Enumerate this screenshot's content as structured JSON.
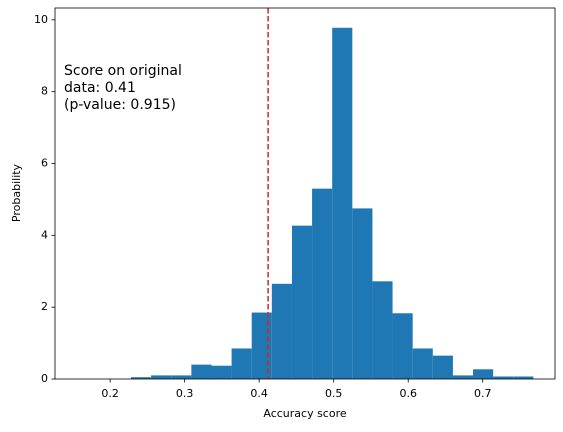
{
  "chart_data": {
    "type": "histogram",
    "xlabel": "Accuracy score",
    "ylabel": "Probability",
    "bins": [
      0.228,
      0.255,
      0.282,
      0.309,
      0.336,
      0.363,
      0.39,
      0.417,
      0.444,
      0.471,
      0.498,
      0.525,
      0.552,
      0.579,
      0.606,
      0.633,
      0.66,
      0.687,
      0.714,
      0.741,
      0.768
    ],
    "values": [
      0.05,
      0.1,
      0.1,
      0.4,
      0.37,
      0.85,
      1.85,
      2.65,
      4.27,
      5.3,
      9.78,
      4.75,
      2.72,
      1.83,
      0.85,
      0.65,
      0.1,
      0.27,
      0.07,
      0.07
    ],
    "color": "#1f77b4",
    "vline": {
      "value": 0.412,
      "color": "#d62728",
      "style": "dashed"
    },
    "annotation": [
      "Score on original",
      "data: 0.41",
      "(p-value: 0.915)"
    ],
    "xlim": [
      0.126,
      0.797
    ],
    "xticks": [
      0.2,
      0.3,
      0.4,
      0.5,
      0.6,
      0.7
    ],
    "ylim": [
      0,
      10.33
    ],
    "yticks": [
      0,
      2,
      4,
      6,
      8,
      10
    ],
    "grid": false
  }
}
